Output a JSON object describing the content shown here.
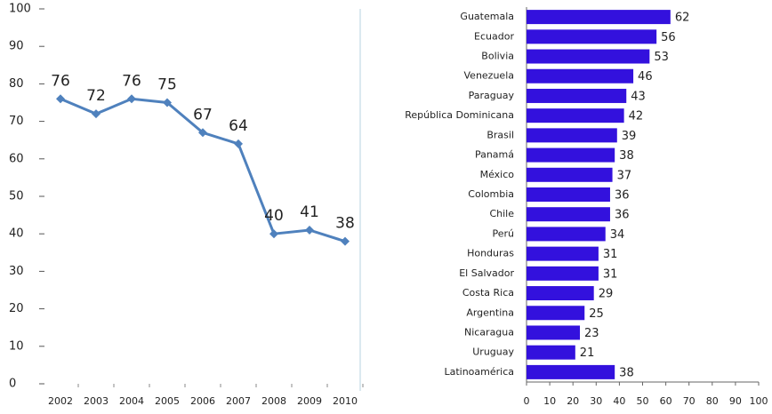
{
  "chart_data": [
    {
      "type": "line",
      "categories": [
        "2002",
        "2003",
        "2004",
        "2005",
        "2006",
        "2007",
        "2008",
        "2009",
        "2010"
      ],
      "values": [
        76,
        72,
        76,
        75,
        67,
        64,
        40,
        41,
        38
      ],
      "color": "#4f81bd",
      "ylim": [
        0,
        100
      ],
      "yticks": [
        0,
        10,
        20,
        30,
        40,
        50,
        60,
        70,
        80,
        90,
        100
      ]
    },
    {
      "type": "hbar",
      "categories": [
        "Guatemala",
        "Ecuador",
        "Bolivia",
        "Venezuela",
        "Paraguay",
        "República Dominicana",
        "Brasil",
        "Panamá",
        "México",
        "Colombia",
        "Chile",
        "Perú",
        "Honduras",
        "El Salvador",
        "Costa Rica",
        "Argentina",
        "Nicaragua",
        "Uruguay",
        "Latinoamérica"
      ],
      "values": [
        62,
        56,
        53,
        46,
        43,
        42,
        39,
        38,
        37,
        36,
        36,
        34,
        31,
        31,
        29,
        25,
        23,
        21,
        38
      ],
      "color": "#3311dd",
      "xlim": [
        0,
        100
      ],
      "xticks": [
        0,
        10,
        20,
        30,
        40,
        50,
        60,
        70,
        80,
        90,
        100
      ]
    }
  ]
}
